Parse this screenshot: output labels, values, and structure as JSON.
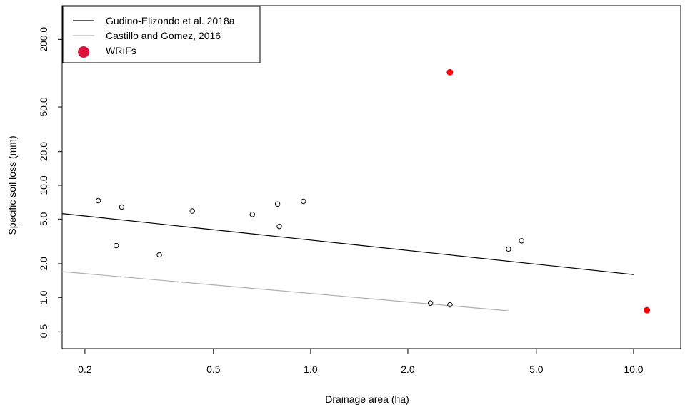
{
  "chart_data": {
    "type": "scatter",
    "xlabel": "Drainage area (ha)",
    "ylabel": "Specific soil loss (mm)",
    "x_scale": "log",
    "y_scale": "log",
    "xlim": [
      0.17,
      14
    ],
    "ylim": [
      0.35,
      400
    ],
    "x_ticks": [
      {
        "value": 0.2,
        "label": "0.2"
      },
      {
        "value": 0.5,
        "label": "0.5"
      },
      {
        "value": 1.0,
        "label": "1.0"
      },
      {
        "value": 2.0,
        "label": "2.0"
      },
      {
        "value": 5.0,
        "label": "5.0"
      },
      {
        "value": 10.0,
        "label": "10.0"
      }
    ],
    "y_ticks": [
      {
        "value": 0.5,
        "label": "0.5"
      },
      {
        "value": 1.0,
        "label": "1.0"
      },
      {
        "value": 2.0,
        "label": "2.0"
      },
      {
        "value": 5.0,
        "label": "5.0"
      },
      {
        "value": 10.0,
        "label": "10.0"
      },
      {
        "value": 20.0,
        "label": "20.0"
      },
      {
        "value": 50.0,
        "label": "50.0"
      },
      {
        "value": 200.0,
        "label": "200.0"
      }
    ],
    "grid": false,
    "legend_position": "top-left",
    "series": [
      {
        "name": "Gudino-Elizondo et al. 2018a",
        "kind": "line",
        "color": "#000000",
        "x": [
          0.17,
          10.0
        ],
        "y": [
          5.6,
          1.6
        ]
      },
      {
        "name": "Castillo and Gomez, 2016",
        "kind": "line",
        "color": "#b0b0b0",
        "x": [
          0.17,
          4.1
        ],
        "y": [
          1.7,
          0.76
        ]
      },
      {
        "name": "WRIFs",
        "kind": "points-filled",
        "color": "#ff0000",
        "x": [
          2.7,
          11.0
        ],
        "y": [
          102,
          0.77
        ]
      },
      {
        "name": "",
        "kind": "points-open",
        "color": "#000000",
        "x": [
          0.22,
          0.25,
          0.26,
          0.34,
          0.43,
          0.66,
          0.79,
          0.8,
          0.95,
          2.35,
          2.7,
          4.1,
          4.5
        ],
        "y": [
          7.3,
          2.9,
          6.4,
          2.4,
          5.9,
          5.5,
          6.8,
          4.3,
          7.2,
          0.89,
          0.86,
          2.7,
          3.2
        ]
      }
    ],
    "legend": [
      {
        "label": "Gudino-Elizondo et al. 2018a",
        "symbol": "line",
        "color": "#000000"
      },
      {
        "label": "Castillo and Gomez, 2016",
        "symbol": "line",
        "color": "#b0b0b0"
      },
      {
        "label": "WRIFs",
        "symbol": "dot",
        "color": "#dc143c"
      }
    ]
  }
}
